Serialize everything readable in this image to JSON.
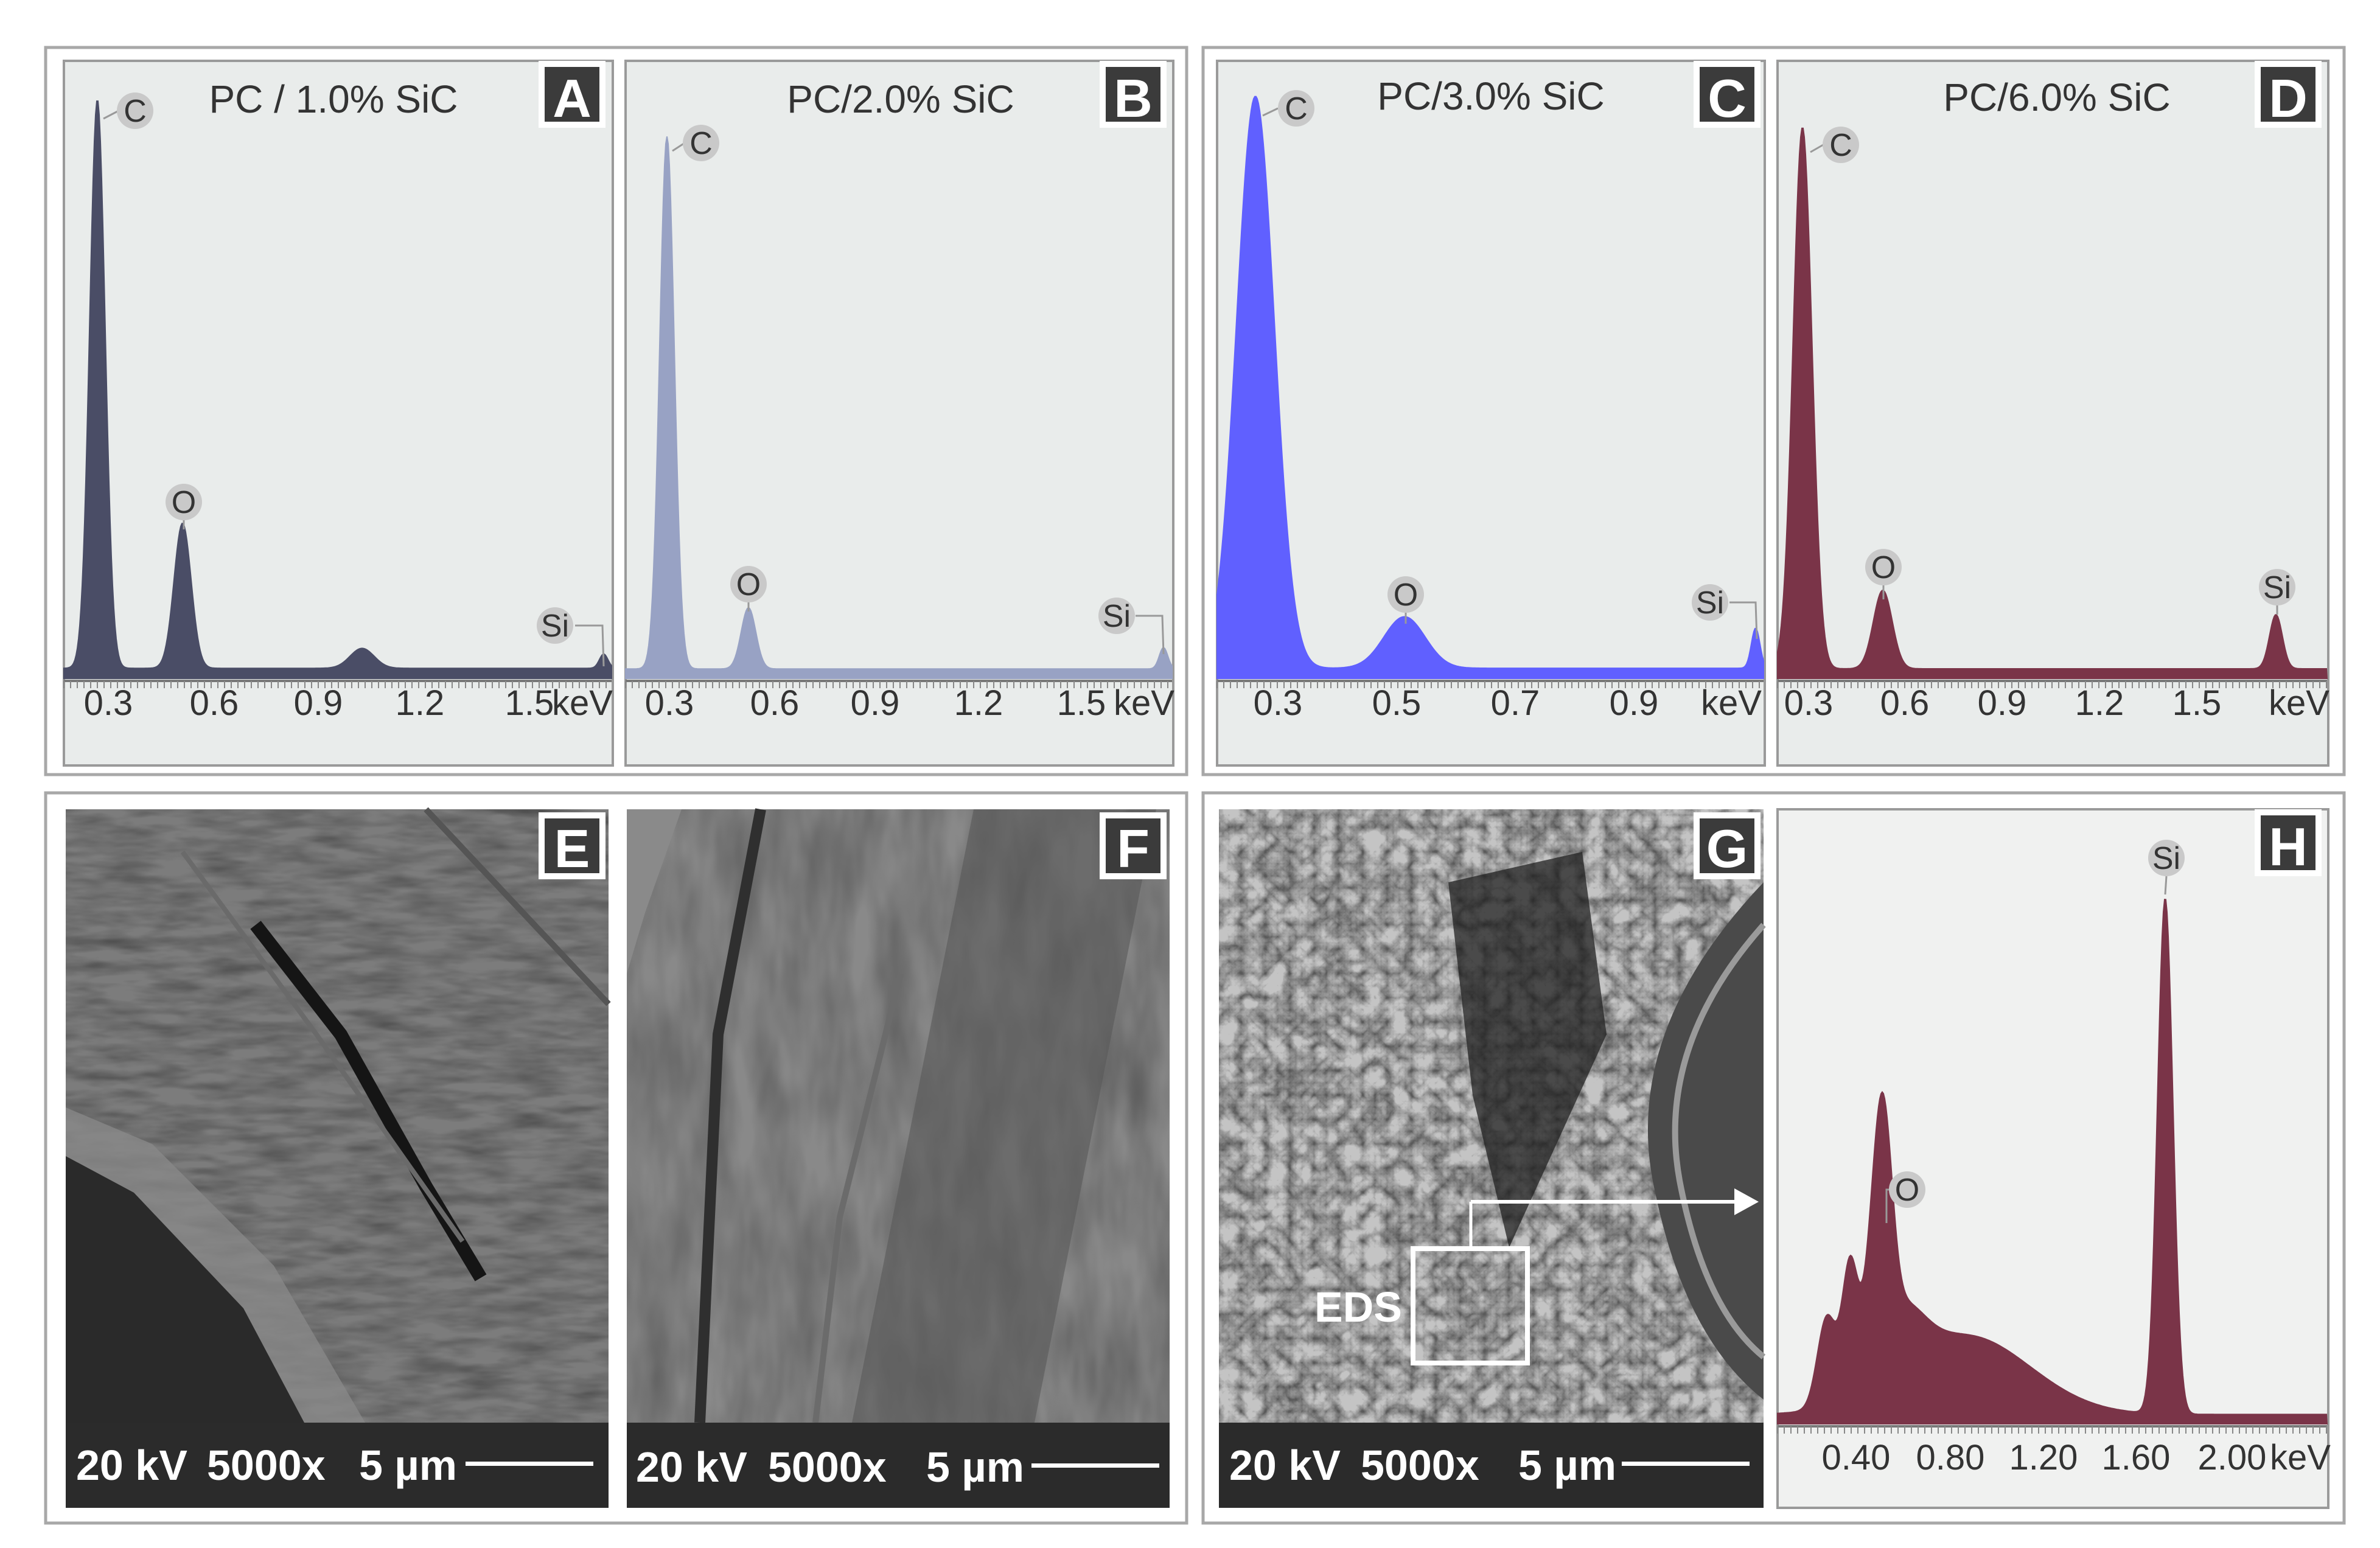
{
  "chart_data": [
    {
      "type": "area",
      "panel": "A",
      "title": "PC / 1.0% SiC",
      "xlabel": "keV",
      "tick_labels": [
        "0.3",
        "0.6",
        "0.9",
        "1.2",
        "1.5"
      ],
      "xlim": [
        0.12,
        1.68
      ],
      "color": "#4a4d66",
      "peaks": [
        {
          "element": "C",
          "x": 0.277,
          "height": 1.0
        },
        {
          "element": "O",
          "x": 0.525,
          "height": 0.255
        },
        {
          "element": "",
          "x": 1.04,
          "height": 0.035
        },
        {
          "element": "Si",
          "x": 1.74,
          "height": 0.025
        }
      ]
    },
    {
      "type": "area",
      "panel": "B",
      "title": "PC/2.0% SiC",
      "xlabel": "keV",
      "tick_labels": [
        "0.3",
        "0.6",
        "0.9",
        "1.2",
        "1.5"
      ],
      "xlim": [
        0.12,
        1.7
      ],
      "color": "#98a2c4",
      "peaks": [
        {
          "element": "C",
          "x": 0.277,
          "height": 1.0
        },
        {
          "element": "O",
          "x": 0.525,
          "height": 0.115
        },
        {
          "element": "Si",
          "x": 1.74,
          "height": 0.04
        }
      ]
    },
    {
      "type": "area",
      "panel": "C",
      "title": "PC/3.0% SiC",
      "xlabel": "keV",
      "tick_labels": [
        "0.3",
        "0.5",
        "0.7",
        "0.9"
      ],
      "xlim": [
        0.2,
        1.04
      ],
      "color": "#6060ff",
      "peaks": [
        {
          "element": "C",
          "x": 0.277,
          "height": 1.0
        },
        {
          "element": "O",
          "x": 0.525,
          "height": 0.09
        },
        {
          "element": "Si",
          "x": 1.74,
          "height": 0.07
        }
      ]
    },
    {
      "type": "area",
      "panel": "D",
      "title": "PC/6.0% SiC",
      "xlabel": "keV",
      "tick_labels": [
        "0.3",
        "0.6",
        "0.9",
        "1.2",
        "1.5"
      ],
      "xlim": [
        0.3,
        1.76
      ],
      "color": "#7a3448",
      "peaks": [
        {
          "element": "C",
          "x": 0.277,
          "height": 1.0
        },
        {
          "element": "O",
          "x": 0.525,
          "height": 0.145
        },
        {
          "element": "Si",
          "x": 1.74,
          "height": 0.1
        }
      ]
    },
    {
      "type": "area",
      "panel": "H",
      "title": "",
      "xlabel": "keV",
      "tick_labels": [
        "0.40",
        "0.80",
        "1.20",
        "1.60",
        "2.00"
      ],
      "xlim": [
        0.12,
        2.25
      ],
      "color": "#7a3448",
      "peaks": [
        {
          "element": "O",
          "x": 0.525,
          "height": 0.31
        },
        {
          "element": "Si",
          "x": 1.74,
          "height": 0.98
        }
      ]
    }
  ],
  "sem_panels": [
    {
      "panel": "E",
      "kv": "20 kV",
      "mag": "5000x",
      "scale": "5 µm"
    },
    {
      "panel": "F",
      "kv": "20 kV",
      "mag": "5000x",
      "scale": "5 µm"
    },
    {
      "panel": "G",
      "kv": "20 kV",
      "mag": "5000x",
      "scale": "5 µm",
      "region_label": "EDS"
    }
  ]
}
